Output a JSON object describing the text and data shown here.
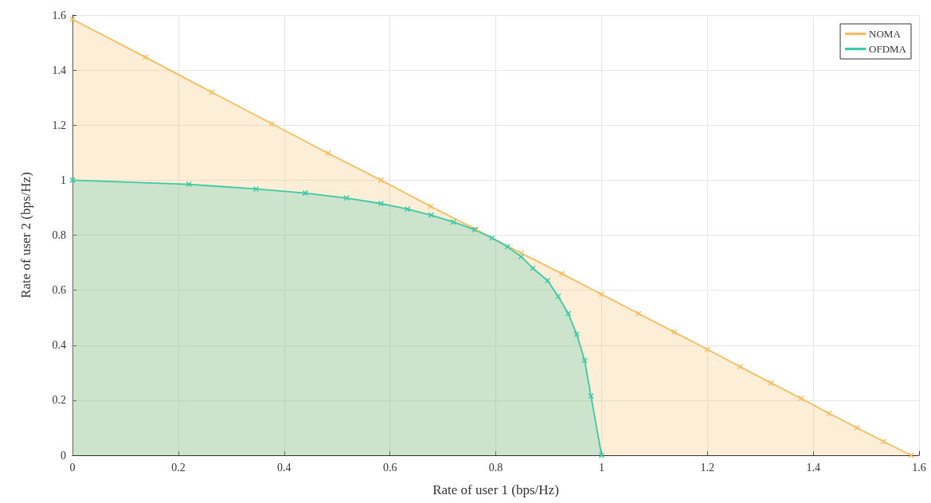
{
  "chart_data": {
    "type": "area",
    "xlabel": "Rate of user 1 (bps/Hz)",
    "ylabel": "Rate of user 2 (bps/Hz)",
    "xlim": [
      0,
      1.6
    ],
    "xticks": [
      0,
      0.2,
      0.4,
      0.6,
      0.8,
      1,
      1.2,
      1.4,
      1.6
    ],
    "ylim": [
      0,
      1.6
    ],
    "yticks": [
      0,
      0.2,
      0.4,
      0.6,
      0.8,
      1,
      1.2,
      1.4,
      1.6
    ],
    "grid": true,
    "legend": "top right",
    "marker": "cross",
    "line_style": "solid",
    "series": [
      {
        "name": "NOMA",
        "color": "#f5bd5f",
        "x": [
          0,
          0.138,
          0.263,
          0.377,
          0.483,
          0.583,
          0.677,
          0.763,
          0.848,
          0.925,
          1.0,
          1.07,
          1.137,
          1.2,
          1.262,
          1.32,
          1.377,
          1.43,
          1.483,
          1.533,
          1.585
        ],
        "values": [
          1.585,
          1.447,
          1.32,
          1.205,
          1.098,
          1.0,
          0.905,
          0.82,
          0.735,
          0.66,
          0.585,
          0.515,
          0.448,
          0.385,
          0.322,
          0.263,
          0.207,
          0.152,
          0.1,
          0.05,
          0
        ]
      },
      {
        "name": "OFDMA",
        "color": "#3cc9a8",
        "x": [
          0,
          0.22,
          0.347,
          0.44,
          0.518,
          0.583,
          0.633,
          0.678,
          0.72,
          0.76,
          0.793,
          0.822,
          0.848,
          0.87,
          0.898,
          0.918,
          0.937,
          0.953,
          0.968,
          0.98,
          1.0
        ],
        "values": [
          1.0,
          0.985,
          0.968,
          0.953,
          0.935,
          0.915,
          0.895,
          0.873,
          0.848,
          0.82,
          0.79,
          0.758,
          0.722,
          0.68,
          0.635,
          0.578,
          0.515,
          0.44,
          0.345,
          0.215,
          0
        ]
      }
    ]
  }
}
